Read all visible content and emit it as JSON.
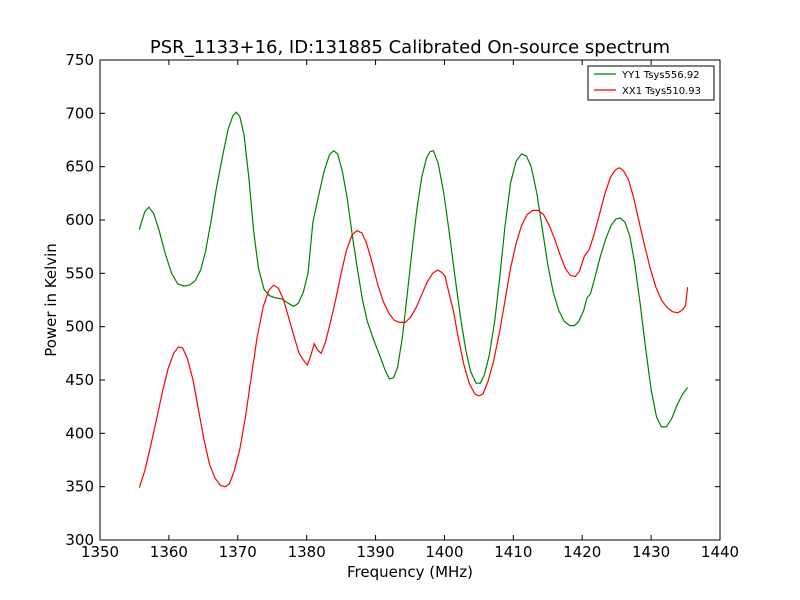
{
  "chart_data": {
    "type": "line",
    "title": "PSR_1133+16, ID:131885 Calibrated On-source spectrum",
    "xlabel": "Frequency (MHz)",
    "ylabel": "Power in Kelvin",
    "xlim": [
      1350,
      1440
    ],
    "ylim": [
      300,
      750
    ],
    "xticks": [
      1350,
      1360,
      1370,
      1380,
      1390,
      1400,
      1410,
      1420,
      1430,
      1440
    ],
    "yticks": [
      300,
      350,
      400,
      450,
      500,
      550,
      600,
      650,
      700,
      750
    ],
    "grid": false,
    "legend_position": "top-right",
    "series": [
      {
        "name": "YY1 Tsys556.92",
        "color": "#008000",
        "points": [
          [
            1355.7,
            591
          ],
          [
            1356.5,
            608
          ],
          [
            1357.1,
            612
          ],
          [
            1357.8,
            606
          ],
          [
            1358.6,
            590
          ],
          [
            1359.5,
            568
          ],
          [
            1360.4,
            550
          ],
          [
            1361.3,
            540
          ],
          [
            1362.2,
            538
          ],
          [
            1363.0,
            539
          ],
          [
            1363.8,
            543
          ],
          [
            1364.6,
            553
          ],
          [
            1365.3,
            570
          ],
          [
            1366.1,
            598
          ],
          [
            1366.9,
            630
          ],
          [
            1367.8,
            660
          ],
          [
            1368.6,
            685
          ],
          [
            1369.3,
            698
          ],
          [
            1369.8,
            701
          ],
          [
            1370.3,
            697
          ],
          [
            1370.9,
            680
          ],
          [
            1371.6,
            640
          ],
          [
            1372.3,
            590
          ],
          [
            1373.0,
            555
          ],
          [
            1373.8,
            535
          ],
          [
            1374.6,
            529
          ],
          [
            1375.5,
            527
          ],
          [
            1376.4,
            526
          ],
          [
            1377.3,
            522
          ],
          [
            1378.1,
            519
          ],
          [
            1378.8,
            522
          ],
          [
            1379.5,
            532
          ],
          [
            1380.2,
            550
          ],
          [
            1380.9,
            598
          ],
          [
            1381.7,
            622
          ],
          [
            1382.5,
            645
          ],
          [
            1383.3,
            661
          ],
          [
            1383.9,
            665
          ],
          [
            1384.5,
            662
          ],
          [
            1385.2,
            645
          ],
          [
            1385.9,
            620
          ],
          [
            1386.6,
            587
          ],
          [
            1387.4,
            553
          ],
          [
            1388.1,
            525
          ],
          [
            1388.8,
            505
          ],
          [
            1389.7,
            488
          ],
          [
            1390.6,
            473
          ],
          [
            1391.4,
            459
          ],
          [
            1392.0,
            451
          ],
          [
            1392.6,
            452
          ],
          [
            1393.2,
            462
          ],
          [
            1393.9,
            490
          ],
          [
            1394.6,
            530
          ],
          [
            1395.3,
            572
          ],
          [
            1396.0,
            610
          ],
          [
            1396.7,
            640
          ],
          [
            1397.4,
            658
          ],
          [
            1397.9,
            664
          ],
          [
            1398.4,
            665
          ],
          [
            1399.1,
            653
          ],
          [
            1399.9,
            625
          ],
          [
            1400.7,
            588
          ],
          [
            1401.5,
            548
          ],
          [
            1402.3,
            510
          ],
          [
            1403.1,
            478
          ],
          [
            1403.8,
            458
          ],
          [
            1404.6,
            447
          ],
          [
            1405.2,
            447
          ],
          [
            1405.8,
            455
          ],
          [
            1406.5,
            473
          ],
          [
            1407.3,
            505
          ],
          [
            1408.0,
            545
          ],
          [
            1408.8,
            595
          ],
          [
            1409.6,
            635
          ],
          [
            1410.4,
            655
          ],
          [
            1411.2,
            662
          ],
          [
            1411.9,
            660
          ],
          [
            1412.6,
            650
          ],
          [
            1413.4,
            625
          ],
          [
            1414.2,
            592
          ],
          [
            1415.0,
            558
          ],
          [
            1415.8,
            532
          ],
          [
            1416.6,
            515
          ],
          [
            1417.4,
            505
          ],
          [
            1418.2,
            501
          ],
          [
            1418.9,
            501
          ],
          [
            1419.5,
            505
          ],
          [
            1420.2,
            515
          ],
          [
            1420.7,
            527
          ],
          [
            1421.2,
            531
          ],
          [
            1421.8,
            545
          ],
          [
            1422.6,
            565
          ],
          [
            1423.4,
            582
          ],
          [
            1424.2,
            595
          ],
          [
            1424.9,
            601
          ],
          [
            1425.5,
            602
          ],
          [
            1426.2,
            598
          ],
          [
            1426.9,
            585
          ],
          [
            1427.6,
            560
          ],
          [
            1428.4,
            522
          ],
          [
            1429.2,
            480
          ],
          [
            1430.0,
            441
          ],
          [
            1430.8,
            415
          ],
          [
            1431.5,
            406
          ],
          [
            1432.2,
            406
          ],
          [
            1433.0,
            414
          ],
          [
            1433.8,
            427
          ],
          [
            1434.6,
            437
          ],
          [
            1435.3,
            443
          ]
        ]
      },
      {
        "name": "XX1 Tsys510.93",
        "color": "#ff0000",
        "points": [
          [
            1355.7,
            349
          ],
          [
            1356.5,
            365
          ],
          [
            1357.3,
            387
          ],
          [
            1358.2,
            413
          ],
          [
            1359.1,
            440
          ],
          [
            1359.9,
            461
          ],
          [
            1360.7,
            475
          ],
          [
            1361.4,
            481
          ],
          [
            1362.0,
            480
          ],
          [
            1362.7,
            470
          ],
          [
            1363.5,
            450
          ],
          [
            1364.3,
            422
          ],
          [
            1365.1,
            394
          ],
          [
            1365.9,
            371
          ],
          [
            1366.7,
            358
          ],
          [
            1367.5,
            351
          ],
          [
            1368.2,
            350
          ],
          [
            1368.8,
            353
          ],
          [
            1369.5,
            365
          ],
          [
            1370.3,
            385
          ],
          [
            1371.1,
            415
          ],
          [
            1372.0,
            455
          ],
          [
            1372.8,
            490
          ],
          [
            1373.7,
            519
          ],
          [
            1374.5,
            534
          ],
          [
            1375.2,
            539
          ],
          [
            1375.9,
            536
          ],
          [
            1376.6,
            526
          ],
          [
            1377.4,
            508
          ],
          [
            1378.2,
            490
          ],
          [
            1378.9,
            475
          ],
          [
            1379.6,
            468
          ],
          [
            1380.1,
            464
          ],
          [
            1380.6,
            473
          ],
          [
            1381.1,
            484
          ],
          [
            1381.6,
            478
          ],
          [
            1382.1,
            475
          ],
          [
            1382.7,
            485
          ],
          [
            1383.4,
            503
          ],
          [
            1384.2,
            525
          ],
          [
            1385.0,
            550
          ],
          [
            1385.8,
            572
          ],
          [
            1386.6,
            586
          ],
          [
            1387.3,
            590
          ],
          [
            1388.0,
            588
          ],
          [
            1388.7,
            578
          ],
          [
            1389.5,
            560
          ],
          [
            1390.3,
            540
          ],
          [
            1391.1,
            524
          ],
          [
            1391.9,
            513
          ],
          [
            1392.7,
            506
          ],
          [
            1393.5,
            504
          ],
          [
            1394.3,
            504
          ],
          [
            1395.1,
            509
          ],
          [
            1395.9,
            518
          ],
          [
            1396.7,
            530
          ],
          [
            1397.5,
            542
          ],
          [
            1398.3,
            550
          ],
          [
            1399.0,
            553
          ],
          [
            1399.6,
            551
          ],
          [
            1400.1,
            547
          ],
          [
            1400.6,
            533
          ],
          [
            1401.3,
            515
          ],
          [
            1402.0,
            490
          ],
          [
            1402.8,
            465
          ],
          [
            1403.6,
            447
          ],
          [
            1404.4,
            437
          ],
          [
            1405.0,
            435
          ],
          [
            1405.6,
            437
          ],
          [
            1406.3,
            448
          ],
          [
            1407.1,
            467
          ],
          [
            1408.0,
            495
          ],
          [
            1408.8,
            525
          ],
          [
            1409.6,
            555
          ],
          [
            1410.4,
            578
          ],
          [
            1411.2,
            595
          ],
          [
            1412.0,
            605
          ],
          [
            1412.8,
            609
          ],
          [
            1413.6,
            609
          ],
          [
            1414.4,
            605
          ],
          [
            1415.2,
            595
          ],
          [
            1416.0,
            582
          ],
          [
            1416.8,
            567
          ],
          [
            1417.6,
            554
          ],
          [
            1418.3,
            548
          ],
          [
            1419.0,
            547
          ],
          [
            1419.6,
            552
          ],
          [
            1420.3,
            566
          ],
          [
            1421.0,
            572
          ],
          [
            1421.7,
            586
          ],
          [
            1422.5,
            605
          ],
          [
            1423.3,
            625
          ],
          [
            1424.1,
            640
          ],
          [
            1424.8,
            647
          ],
          [
            1425.4,
            649
          ],
          [
            1426.0,
            646
          ],
          [
            1426.7,
            638
          ],
          [
            1427.5,
            620
          ],
          [
            1428.3,
            597
          ],
          [
            1429.1,
            575
          ],
          [
            1429.9,
            554
          ],
          [
            1430.7,
            537
          ],
          [
            1431.5,
            525
          ],
          [
            1432.3,
            518
          ],
          [
            1433.1,
            514
          ],
          [
            1433.9,
            513
          ],
          [
            1434.6,
            516
          ],
          [
            1435.0,
            520
          ],
          [
            1435.3,
            537
          ]
        ]
      }
    ]
  }
}
